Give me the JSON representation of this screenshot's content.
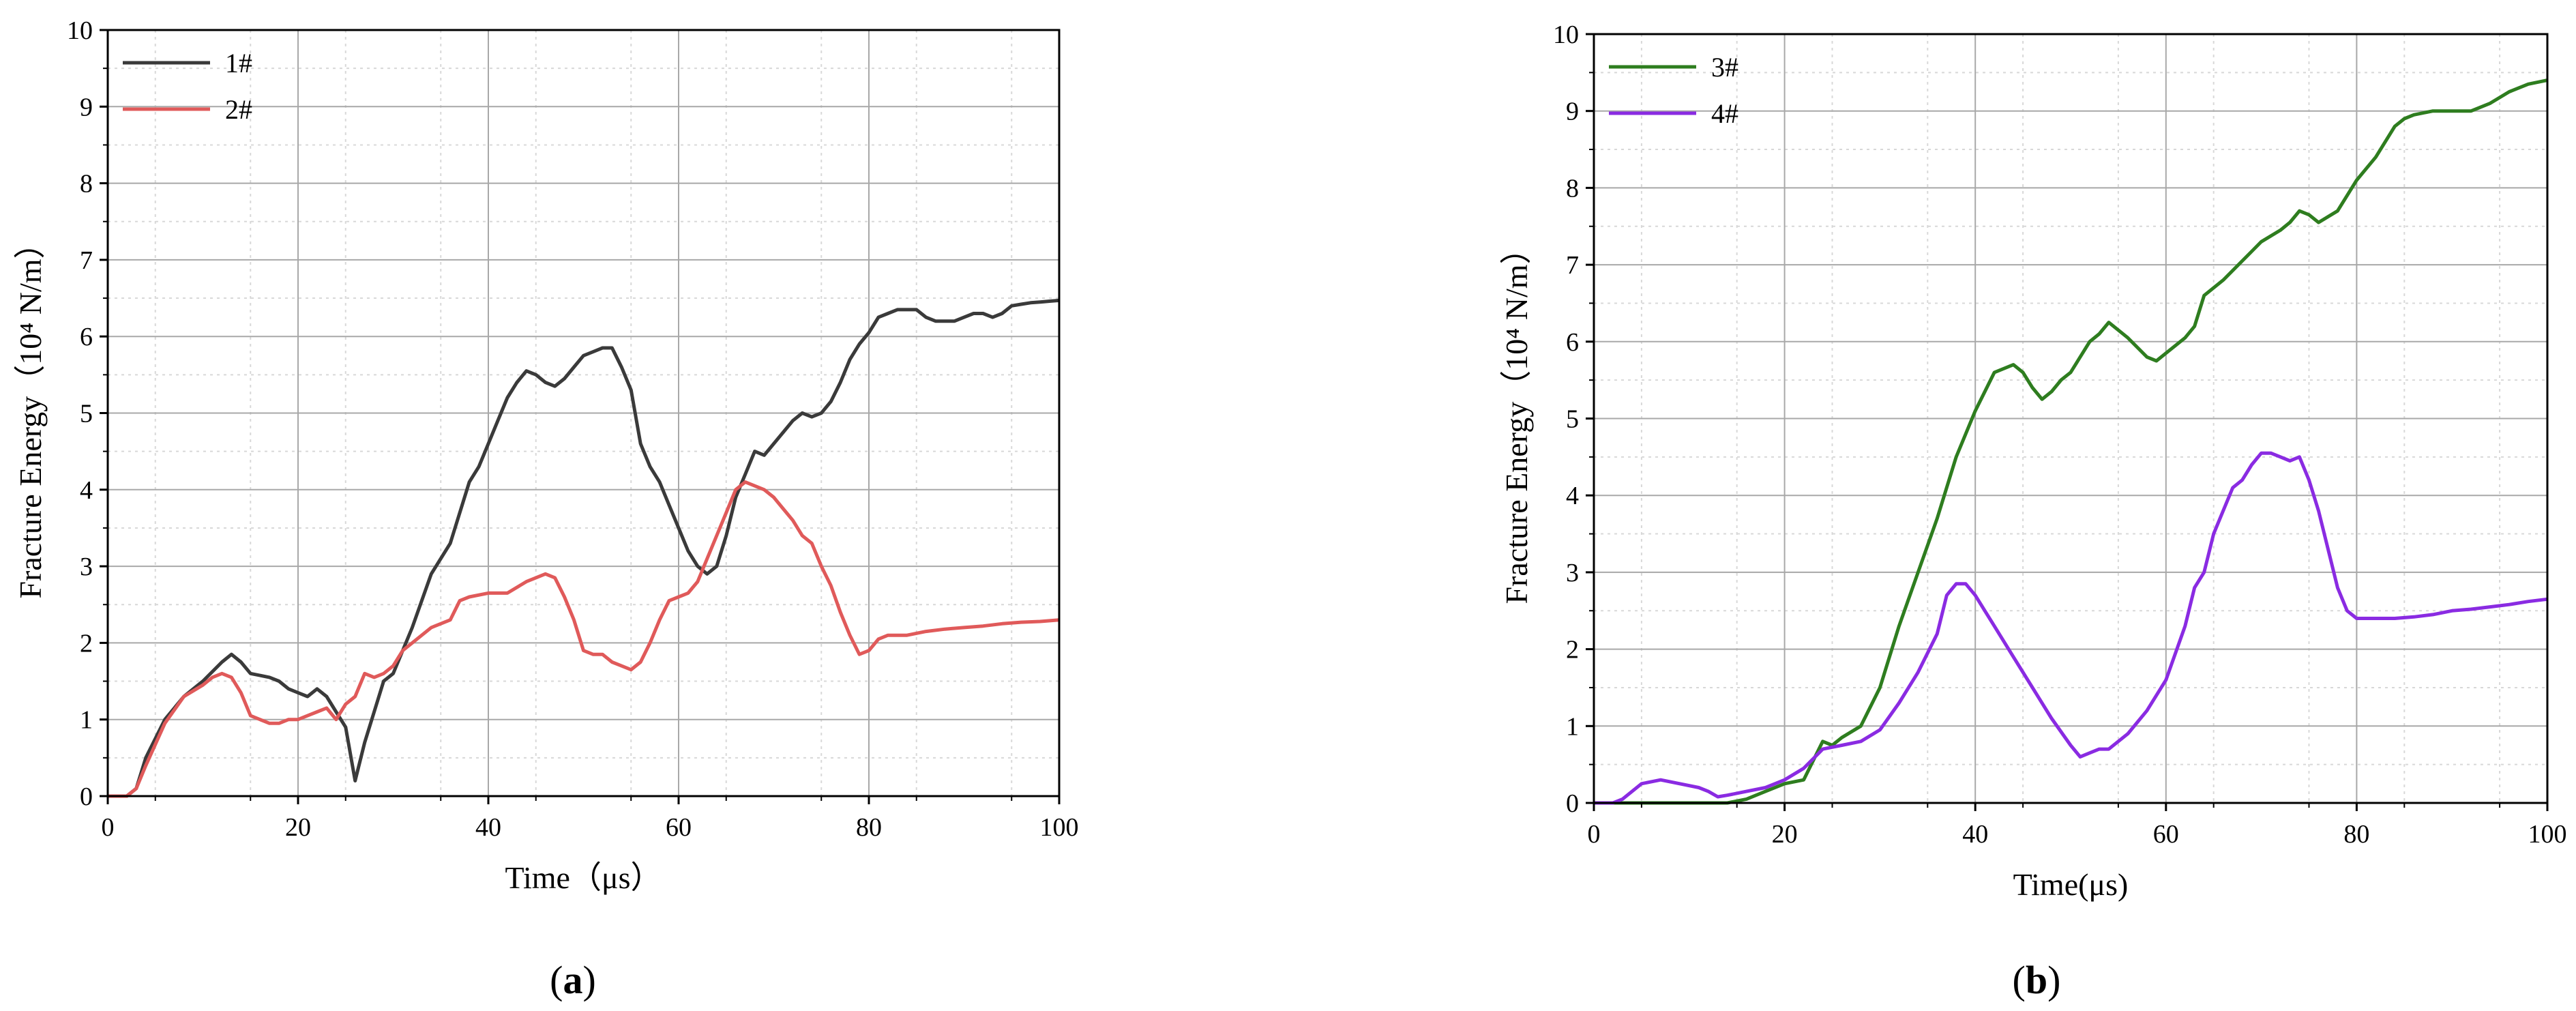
{
  "chart_data": [
    {
      "type": "line",
      "panel_label": "(a)",
      "panel_letter": "a",
      "xlabel": "Time（μs）",
      "ylabel": "Fracture Energy（10⁴ N/m）",
      "xlim": [
        0,
        100
      ],
      "ylim": [
        0,
        10
      ],
      "xticks": [
        "0",
        "20",
        "40",
        "60",
        "80",
        "100"
      ],
      "yticks": [
        "0",
        "1",
        "2",
        "3",
        "4",
        "5",
        "6",
        "7",
        "8",
        "9",
        "10"
      ],
      "grid": true,
      "legend_position": "top-left",
      "series": [
        {
          "name": "1#",
          "color": "#3a3a3a",
          "x": [
            0,
            2,
            3,
            4,
            6,
            8,
            10,
            12,
            13,
            14,
            15,
            17,
            18,
            19,
            20,
            21,
            22,
            23,
            24,
            25,
            26,
            27,
            28,
            29,
            30,
            32,
            34,
            36,
            38,
            39,
            40,
            41,
            42,
            43,
            44,
            45,
            46,
            47,
            48,
            49,
            50,
            51,
            52,
            53,
            54,
            55,
            56,
            57,
            58,
            59,
            60,
            61,
            62,
            63,
            64,
            65,
            66,
            67,
            68,
            69,
            70,
            71,
            72,
            73,
            74,
            75,
            76,
            77,
            78,
            79,
            80,
            81,
            82,
            83,
            84,
            85,
            86,
            87,
            88,
            89,
            90,
            91,
            92,
            93,
            94,
            95,
            96,
            97,
            98,
            99,
            100
          ],
          "y": [
            0,
            0,
            0.1,
            0.5,
            1.0,
            1.3,
            1.5,
            1.75,
            1.85,
            1.75,
            1.6,
            1.55,
            1.5,
            1.4,
            1.35,
            1.3,
            1.4,
            1.3,
            1.1,
            0.9,
            0.2,
            0.7,
            1.1,
            1.5,
            1.6,
            2.2,
            2.9,
            3.3,
            4.1,
            4.3,
            4.6,
            4.9,
            5.2,
            5.4,
            5.55,
            5.5,
            5.4,
            5.35,
            5.45,
            5.6,
            5.75,
            5.8,
            5.85,
            5.85,
            5.6,
            5.3,
            4.6,
            4.3,
            4.1,
            3.8,
            3.5,
            3.2,
            3.0,
            2.9,
            3.0,
            3.4,
            3.9,
            4.2,
            4.5,
            4.45,
            4.6,
            4.75,
            4.9,
            5.0,
            4.95,
            5.0,
            5.15,
            5.4,
            5.7,
            5.9,
            6.05,
            6.25,
            6.3,
            6.35,
            6.35,
            6.35,
            6.25,
            6.2,
            6.2,
            6.2,
            6.25,
            6.3,
            6.3,
            6.25,
            6.3,
            6.4,
            6.42,
            6.44,
            6.45,
            6.46,
            6.47
          ]
        },
        {
          "name": "2#",
          "color": "#e05a5a",
          "x": [
            0,
            2,
            3,
            4,
            6,
            8,
            10,
            11,
            12,
            13,
            14,
            15,
            16,
            17,
            18,
            19,
            20,
            21,
            22,
            23,
            24,
            25,
            26,
            27,
            28,
            29,
            30,
            31,
            32,
            34,
            36,
            37,
            38,
            40,
            42,
            44,
            45,
            46,
            47,
            48,
            49,
            50,
            51,
            52,
            53,
            54,
            55,
            56,
            57,
            58,
            59,
            60,
            61,
            62,
            63,
            64,
            65,
            66,
            67,
            68,
            69,
            70,
            71,
            72,
            73,
            74,
            75,
            76,
            77,
            78,
            79,
            80,
            81,
            82,
            84,
            86,
            88,
            90,
            92,
            94,
            96,
            98,
            100
          ],
          "y": [
            0,
            0,
            0.1,
            0.4,
            0.95,
            1.3,
            1.45,
            1.55,
            1.6,
            1.55,
            1.35,
            1.05,
            1.0,
            0.95,
            0.95,
            1.0,
            1.0,
            1.05,
            1.1,
            1.15,
            1.0,
            1.2,
            1.3,
            1.6,
            1.55,
            1.6,
            1.7,
            1.9,
            2.0,
            2.2,
            2.3,
            2.55,
            2.6,
            2.65,
            2.65,
            2.8,
            2.85,
            2.9,
            2.85,
            2.6,
            2.3,
            1.9,
            1.85,
            1.85,
            1.75,
            1.7,
            1.65,
            1.75,
            2.0,
            2.3,
            2.55,
            2.6,
            2.65,
            2.8,
            3.1,
            3.4,
            3.7,
            4.0,
            4.1,
            4.05,
            4.0,
            3.9,
            3.75,
            3.6,
            3.4,
            3.3,
            3.0,
            2.75,
            2.4,
            2.1,
            1.85,
            1.9,
            2.05,
            2.1,
            2.1,
            2.15,
            2.18,
            2.2,
            2.22,
            2.25,
            2.27,
            2.28,
            2.3
          ]
        }
      ]
    },
    {
      "type": "line",
      "panel_label": "(b)",
      "panel_letter": "b",
      "xlabel": "Time(μs)",
      "ylabel": "Fracture Energy（10⁴ N/m）",
      "xlim": [
        0,
        100
      ],
      "ylim": [
        0,
        10
      ],
      "xticks": [
        "0",
        "20",
        "40",
        "60",
        "80",
        "100"
      ],
      "yticks": [
        "0",
        "1",
        "2",
        "3",
        "4",
        "5",
        "6",
        "7",
        "8",
        "9",
        "10"
      ],
      "grid": true,
      "legend_position": "top-left",
      "series": [
        {
          "name": "3#",
          "color": "#2e7d1f",
          "x": [
            0,
            2,
            4,
            6,
            8,
            10,
            12,
            13,
            14,
            16,
            18,
            20,
            22,
            24,
            25,
            26,
            28,
            30,
            32,
            34,
            36,
            38,
            40,
            42,
            44,
            45,
            46,
            47,
            48,
            49,
            50,
            52,
            53,
            54,
            56,
            58,
            59,
            60,
            62,
            63,
            64,
            66,
            68,
            70,
            72,
            73,
            74,
            75,
            76,
            78,
            80,
            82,
            84,
            85,
            86,
            88,
            90,
            92,
            94,
            96,
            98,
            100
          ],
          "y": [
            0,
            0,
            0,
            0,
            0,
            0,
            0,
            0,
            0,
            0.05,
            0.15,
            0.25,
            0.3,
            0.8,
            0.75,
            0.85,
            1.0,
            1.5,
            2.3,
            3.0,
            3.7,
            4.5,
            5.1,
            5.6,
            5.7,
            5.6,
            5.4,
            5.25,
            5.35,
            5.5,
            5.6,
            6.0,
            6.1,
            6.25,
            6.05,
            5.8,
            5.75,
            5.85,
            6.05,
            6.2,
            6.6,
            6.8,
            7.05,
            7.3,
            7.45,
            7.55,
            7.7,
            7.65,
            7.55,
            7.7,
            8.1,
            8.4,
            8.8,
            8.9,
            8.95,
            9.0,
            9.0,
            9.0,
            9.1,
            9.25,
            9.35,
            9.4
          ]
        },
        {
          "name": "4#",
          "color": "#8a2be2",
          "x": [
            0,
            2,
            3,
            5,
            7,
            9,
            11,
            12,
            13,
            14,
            16,
            18,
            20,
            22,
            24,
            26,
            28,
            30,
            32,
            34,
            36,
            37,
            38,
            39,
            40,
            41,
            42,
            44,
            46,
            48,
            50,
            51,
            52,
            53,
            54,
            56,
            58,
            60,
            62,
            63,
            64,
            65,
            66,
            67,
            68,
            69,
            70,
            71,
            72,
            73,
            74,
            75,
            76,
            77,
            78,
            79,
            80,
            82,
            84,
            86,
            88,
            90,
            92,
            94,
            96,
            98,
            100
          ],
          "y": [
            0,
            0,
            0.05,
            0.25,
            0.3,
            0.25,
            0.2,
            0.15,
            0.08,
            0.1,
            0.15,
            0.2,
            0.3,
            0.45,
            0.7,
            0.75,
            0.8,
            0.95,
            1.3,
            1.7,
            2.2,
            2.7,
            2.85,
            2.85,
            2.7,
            2.5,
            2.3,
            1.9,
            1.5,
            1.1,
            0.75,
            0.6,
            0.65,
            0.7,
            0.7,
            0.9,
            1.2,
            1.6,
            2.3,
            2.8,
            3.0,
            3.5,
            3.8,
            4.1,
            4.2,
            4.4,
            4.55,
            4.55,
            4.5,
            4.45,
            4.5,
            4.2,
            3.8,
            3.3,
            2.8,
            2.5,
            2.4,
            2.4,
            2.4,
            2.42,
            2.45,
            2.5,
            2.52,
            2.55,
            2.58,
            2.62,
            2.65
          ]
        }
      ]
    }
  ]
}
